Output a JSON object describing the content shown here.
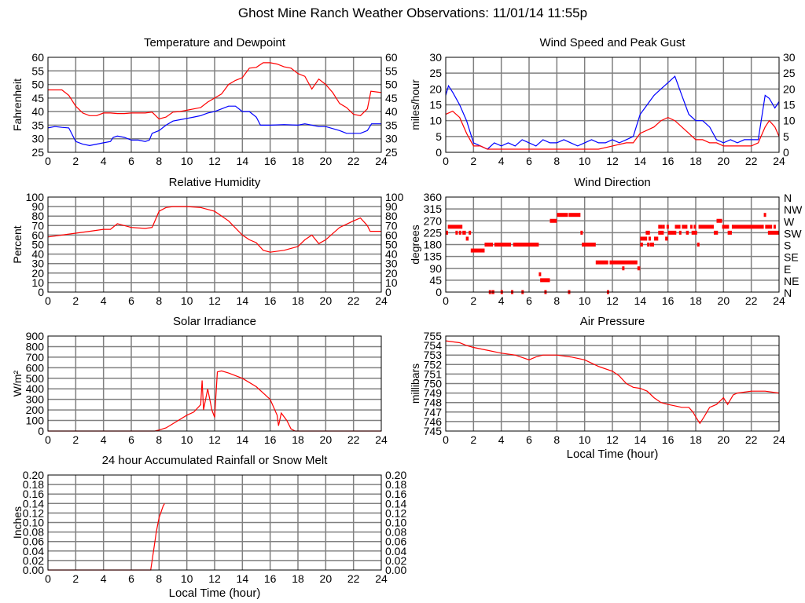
{
  "title": "Ghost Mine Ranch Weather Observations: 11/01/14 11:55p",
  "chart_data": [
    {
      "type": "line",
      "title": "Temperature and Dewpoint",
      "ylabel": "Fahrenheit",
      "xlabel": "",
      "xlim": [
        0,
        24
      ],
      "ylim": [
        25,
        60
      ],
      "ystep": 5,
      "decimals": 0,
      "right_axis": "mirror",
      "grid": true,
      "series": [
        {
          "name": "Temperature",
          "color": "#ff0000",
          "x": [
            0,
            0.5,
            1,
            1.5,
            2,
            2.5,
            3,
            3.5,
            4,
            4.5,
            5,
            5.5,
            6,
            6.5,
            7,
            7.5,
            8,
            8.5,
            9,
            9.5,
            10,
            10.5,
            11,
            11.5,
            12,
            12.5,
            13,
            13.5,
            14,
            14.5,
            15,
            15.5,
            16,
            16.5,
            17,
            17.5,
            18,
            18.5,
            19,
            19.5,
            20,
            20.5,
            21,
            21.5,
            22,
            22.5,
            23,
            23.25,
            24
          ],
          "y": [
            48,
            48,
            48,
            46,
            42,
            39.5,
            38.5,
            38.5,
            39.5,
            39.5,
            39.3,
            39.3,
            39.5,
            39.5,
            39.5,
            39.8,
            37.3,
            38,
            39.8,
            40,
            40.5,
            41,
            41.5,
            43.5,
            45,
            46.5,
            50,
            51.5,
            52.5,
            56,
            56.3,
            58,
            58,
            57.5,
            56.5,
            56,
            54,
            53,
            48.3,
            52,
            50,
            47,
            43,
            41.5,
            39,
            38.5,
            41,
            47.5,
            47
          ]
        },
        {
          "name": "Dewpoint",
          "color": "#0000ff",
          "x": [
            0,
            0.5,
            1,
            1.5,
            2,
            2.5,
            3,
            3.5,
            4,
            4.5,
            4.7,
            5,
            5.5,
            6,
            6.5,
            7,
            7.3,
            7.5,
            8,
            8.5,
            9,
            9.5,
            10,
            10.5,
            11,
            11.5,
            12,
            12.5,
            13,
            13.5,
            14,
            14.5,
            15,
            15.3,
            16,
            17,
            18,
            18.5,
            19,
            19.5,
            20,
            21,
            21.5,
            22,
            22.5,
            23,
            23.3,
            24
          ],
          "y": [
            34,
            34.5,
            34.2,
            34,
            29,
            28,
            27.5,
            28,
            28.5,
            29,
            30.5,
            31,
            30.5,
            29.5,
            29.5,
            29,
            29.5,
            32,
            33,
            35,
            36.5,
            37,
            37.5,
            38,
            38.5,
            39.5,
            40,
            41,
            42,
            42,
            40,
            40,
            38,
            35,
            35,
            35.2,
            35,
            35.5,
            35,
            34.5,
            34.5,
            33,
            32,
            32,
            32,
            33,
            35.5,
            35.5
          ]
        }
      ]
    },
    {
      "type": "line",
      "title": "Wind Speed and Peak Gust",
      "ylabel": "miles/hour",
      "xlabel": "",
      "xlim": [
        0,
        24
      ],
      "ylim": [
        0,
        30
      ],
      "ystep": 5,
      "decimals": 0,
      "right_axis": "mirror",
      "grid": true,
      "series": [
        {
          "name": "Peak Gust",
          "color": "#0000ff",
          "x": [
            0,
            0.2,
            0.5,
            1,
            1.5,
            2,
            2.5,
            3,
            3.5,
            4,
            4.5,
            5,
            5.5,
            6,
            6.5,
            7,
            7.5,
            8,
            8.5,
            9,
            9.5,
            10,
            10.5,
            11,
            11.5,
            12,
            12.5,
            13,
            13.5,
            14,
            14.5,
            15,
            15.5,
            16,
            16.5,
            17,
            17.5,
            18,
            18.5,
            19,
            19.5,
            20,
            20.5,
            21,
            21.5,
            22,
            22.5,
            23,
            23.3,
            23.7,
            24
          ],
          "y": [
            18,
            21,
            19,
            15,
            10,
            3,
            2,
            1,
            3,
            2,
            3,
            2,
            4,
            3,
            2,
            4,
            3,
            3,
            4,
            3,
            2,
            3,
            4,
            3,
            3,
            4,
            3,
            4,
            5,
            12,
            15,
            18,
            20,
            22,
            24,
            18,
            12,
            10,
            10,
            8,
            4,
            3,
            4,
            3,
            4,
            4,
            4,
            18,
            17,
            14,
            16
          ]
        },
        {
          "name": "Wind Speed",
          "color": "#ff0000",
          "x": [
            0,
            0.5,
            1,
            1.5,
            2,
            2.5,
            3,
            4,
            5,
            6,
            7,
            8,
            9,
            10,
            11,
            12,
            13,
            13.5,
            14,
            14.5,
            15,
            15.5,
            16,
            16.5,
            17,
            17.5,
            18,
            18.5,
            19,
            19.5,
            20,
            21,
            22,
            22.5,
            23,
            23.3,
            23.7,
            24
          ],
          "y": [
            12,
            13,
            11,
            6,
            2,
            2,
            1,
            1,
            1,
            1,
            1,
            1,
            1,
            1,
            1,
            2,
            3,
            3,
            6,
            7,
            8,
            10,
            11,
            10,
            8,
            6,
            4,
            4,
            3,
            3,
            2,
            2,
            2,
            3,
            8,
            10,
            8,
            5
          ]
        }
      ]
    },
    {
      "type": "line",
      "title": "Relative Humidity",
      "ylabel": "Percent",
      "xlabel": "",
      "xlim": [
        0,
        24
      ],
      "ylim": [
        0,
        100
      ],
      "ystep": 10,
      "decimals": 0,
      "right_axis": "mirror",
      "grid": true,
      "series": [
        {
          "name": "Relative Humidity",
          "color": "#ff0000",
          "x": [
            0,
            1,
            2,
            3,
            4,
            4.5,
            5,
            5.5,
            6,
            7,
            7.5,
            8,
            8.5,
            9,
            10,
            11,
            12,
            13,
            14,
            14.5,
            15,
            15.5,
            16,
            17,
            18,
            18.5,
            19,
            19.5,
            20,
            21,
            22,
            22.5,
            23,
            23.2,
            24
          ],
          "y": [
            58,
            60,
            62,
            64,
            66,
            66,
            72,
            70,
            68,
            67,
            68,
            85,
            89,
            90,
            90,
            89,
            85,
            75,
            60,
            55,
            52,
            44,
            42,
            44,
            48,
            55,
            60,
            51,
            55,
            68,
            75,
            78,
            70,
            64,
            64
          ]
        }
      ]
    },
    {
      "type": "scatter",
      "title": "Wind Direction",
      "ylabel": "degrees",
      "xlabel": "",
      "xlim": [
        0,
        24
      ],
      "ylim": [
        0,
        360
      ],
      "ystep": 45,
      "decimals": 0,
      "right_axis": "labels",
      "right_labels": [
        "N",
        "NE",
        "E",
        "SE",
        "S",
        "SW",
        "W",
        "NW",
        "N"
      ],
      "grid": true,
      "color": "#ff0000",
      "segments_hours_deg": [
        [
          0,
          0.15,
          225
        ],
        [
          0.15,
          1.2,
          247.5
        ],
        [
          0.7,
          0.85,
          225
        ],
        [
          0.95,
          1.05,
          225
        ],
        [
          1.2,
          1.45,
          225
        ],
        [
          1.45,
          1.65,
          202.5
        ],
        [
          1.65,
          1.8,
          225
        ],
        [
          1.8,
          2.8,
          157.5
        ],
        [
          2.8,
          3.4,
          180
        ],
        [
          3.1,
          3.2,
          0
        ],
        [
          3.3,
          3.5,
          0
        ],
        [
          3.5,
          4.7,
          180
        ],
        [
          3.95,
          4.05,
          0
        ],
        [
          4.7,
          4.85,
          0
        ],
        [
          4.85,
          6.7,
          180
        ],
        [
          5.45,
          5.55,
          0
        ],
        [
          6.7,
          6.8,
          67.5
        ],
        [
          6.8,
          7.5,
          45
        ],
        [
          7.1,
          7.2,
          0
        ],
        [
          7.5,
          8,
          270
        ],
        [
          8,
          8.8,
          292.5
        ],
        [
          8.8,
          8.9,
          0
        ],
        [
          8.85,
          9.7,
          292.5
        ],
        [
          9.7,
          9.8,
          225
        ],
        [
          9.8,
          10.8,
          180
        ],
        [
          10.8,
          11.7,
          112.5
        ],
        [
          11.6,
          11.7,
          0
        ],
        [
          11.8,
          13.8,
          112.5
        ],
        [
          12.7,
          12.8,
          90
        ],
        [
          13.8,
          14,
          90
        ],
        [
          14,
          14.2,
          180
        ],
        [
          14,
          14.5,
          202.5
        ],
        [
          14.4,
          14.7,
          225
        ],
        [
          14.5,
          14.6,
          180
        ],
        [
          14.6,
          14.7,
          202.5
        ],
        [
          14.7,
          15,
          180
        ],
        [
          15,
          15.3,
          202.5
        ],
        [
          15.3,
          15.6,
          247.5
        ],
        [
          15.3,
          15.7,
          225
        ],
        [
          15.6,
          15.7,
          247.5
        ],
        [
          15.8,
          16,
          202.5
        ],
        [
          15.9,
          16,
          247.5
        ],
        [
          16,
          16.6,
          225
        ],
        [
          16.5,
          16.9,
          247.5
        ],
        [
          16.8,
          16.9,
          225
        ],
        [
          17,
          17.4,
          247.5
        ],
        [
          17.3,
          17.5,
          225
        ],
        [
          17.6,
          17.7,
          247.5
        ],
        [
          17.7,
          18.1,
          225
        ],
        [
          17.85,
          17.95,
          247.5
        ],
        [
          18.1,
          18.2,
          180
        ],
        [
          18.2,
          19.3,
          247.5
        ],
        [
          19.3,
          19.6,
          225
        ],
        [
          19.5,
          19.9,
          270
        ],
        [
          19.9,
          20.4,
          247.5
        ],
        [
          20.3,
          20.6,
          225
        ],
        [
          20.6,
          22.9,
          247.5
        ],
        [
          22.9,
          23,
          292.5
        ],
        [
          23,
          23.5,
          247.5
        ],
        [
          23.2,
          24,
          225
        ],
        [
          23.6,
          23.7,
          247.5
        ]
      ]
    },
    {
      "type": "line",
      "title": "Solar Irradiance",
      "ylabel": "W/m²",
      "xlabel": "",
      "xlim": [
        0,
        24
      ],
      "ylim": [
        0,
        900
      ],
      "ystep": 100,
      "decimals": 0,
      "right_axis": "none",
      "grid": true,
      "series": [
        {
          "name": "Solar Irradiance",
          "color": "#ff0000",
          "x": [
            0,
            7.7,
            8,
            8.5,
            9,
            9.5,
            10,
            10.5,
            11,
            11.1,
            11.2,
            11.5,
            11.8,
            12,
            12.2,
            12.5,
            13,
            14,
            15,
            16,
            16.5,
            16.6,
            16.8,
            17.2,
            17.5,
            17.8,
            24
          ],
          "y": [
            0,
            0,
            10,
            30,
            70,
            110,
            150,
            180,
            250,
            480,
            200,
            400,
            200,
            130,
            560,
            570,
            550,
            500,
            420,
            300,
            150,
            50,
            170,
            100,
            20,
            0,
            0
          ]
        }
      ]
    },
    {
      "type": "line",
      "title": "Air Pressure",
      "ylabel": "millibars",
      "xlabel": "Local Time (hour)",
      "xlim": [
        0,
        24
      ],
      "ylim": [
        745,
        755
      ],
      "ystep": 1,
      "decimals": 0,
      "right_axis": "none",
      "grid": true,
      "series": [
        {
          "name": "Air Pressure",
          "color": "#ff0000",
          "x": [
            0,
            1,
            1.5,
            2,
            3,
            4,
            5,
            6,
            6.5,
            7,
            8,
            9,
            10,
            11,
            12,
            12.5,
            13,
            13.5,
            14,
            14.5,
            15,
            15.5,
            16,
            17,
            17.5,
            17.8,
            18,
            18.3,
            18.6,
            19,
            19.5,
            20,
            20.3,
            20.7,
            21,
            22,
            23,
            24
          ],
          "y": [
            754.5,
            754.3,
            754,
            753.8,
            753.5,
            753.2,
            753,
            752.5,
            752.8,
            753,
            753,
            752.8,
            752.5,
            751.8,
            751.3,
            750.8,
            750,
            749.6,
            749.5,
            749.2,
            748.5,
            748,
            747.8,
            747.5,
            747.5,
            747,
            746.5,
            745.8,
            746.5,
            747.5,
            747.8,
            748.5,
            747.8,
            748.8,
            749,
            749.2,
            749.2,
            749
          ]
        }
      ]
    },
    {
      "type": "line",
      "title": "24 hour Accumulated Rainfall or Snow Melt",
      "ylabel": "Inches",
      "xlabel": "Local Time (hour)",
      "xlim": [
        0,
        24
      ],
      "ylim": [
        0,
        0.2
      ],
      "ystep": 0.02,
      "decimals": 2,
      "right_axis": "mirror",
      "grid": true,
      "series": [
        {
          "name": "Accumulated Rainfall",
          "color": "#ff0000",
          "x": [
            0,
            7.4,
            7.6,
            7.8,
            8,
            8.3,
            8.4
          ],
          "y": [
            0,
            0,
            0.04,
            0.08,
            0.11,
            0.135,
            0.14
          ]
        }
      ]
    }
  ]
}
